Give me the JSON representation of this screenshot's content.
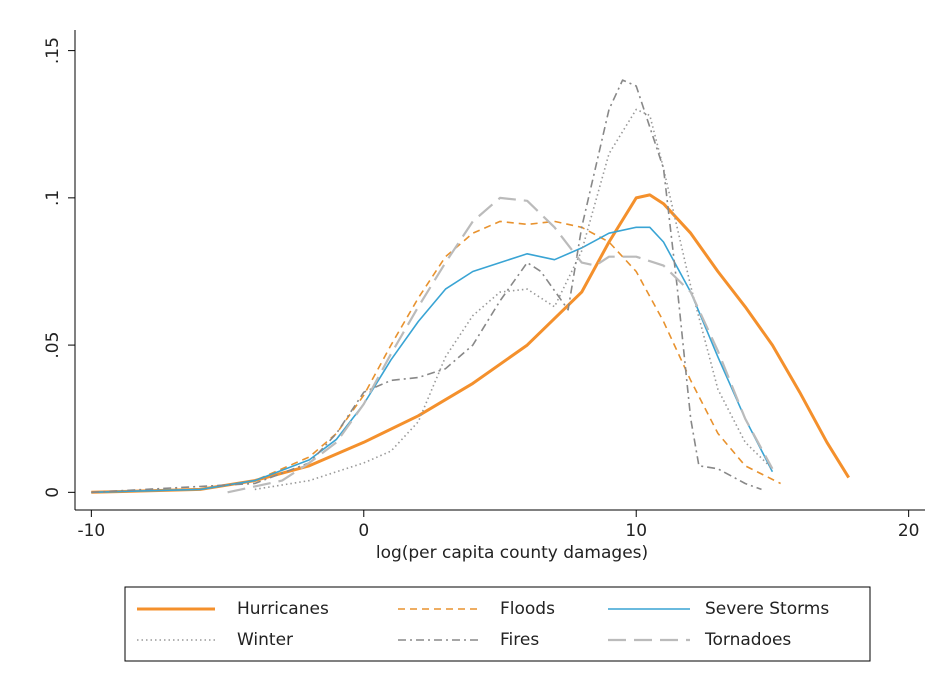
{
  "chart_data": {
    "type": "line",
    "xlabel": "log(per capita county damages)",
    "xlim": [
      -10.6,
      20.6
    ],
    "xticks": [
      -10,
      0,
      10,
      20
    ],
    "ylim": [
      -0.006,
      0.157
    ],
    "yticks": [
      0,
      {
        "value": 0.05,
        "label": ".05"
      },
      {
        "value": 0.1,
        "label": ".1"
      },
      {
        "value": 0.15,
        "label": ".15"
      }
    ],
    "series": [
      {
        "name": "Hurricanes",
        "color": "#f4902c",
        "style": "solid",
        "line_width": 3,
        "x": [
          -10,
          -6,
          -4,
          -2,
          0,
          2,
          4,
          6,
          8,
          9,
          10,
          10.5,
          11,
          12,
          13,
          14,
          15,
          16,
          17,
          17.8
        ],
        "values": [
          0,
          0.001,
          0.004,
          0.009,
          0.017,
          0.026,
          0.037,
          0.05,
          0.068,
          0.085,
          0.1,
          0.101,
          0.098,
          0.088,
          0.075,
          0.063,
          0.05,
          0.034,
          0.017,
          0.005
        ]
      },
      {
        "name": "Floods",
        "color": "#e8922e",
        "style": "dashed",
        "line_width": 1.6,
        "x": [
          -10,
          -6,
          -4,
          -2,
          -1,
          0,
          1,
          2,
          3,
          4,
          5,
          6,
          7,
          8,
          9,
          10,
          11,
          12,
          13,
          14,
          15.3
        ],
        "values": [
          0,
          0.001,
          0.004,
          0.012,
          0.02,
          0.033,
          0.05,
          0.066,
          0.08,
          0.088,
          0.092,
          0.091,
          0.092,
          0.09,
          0.085,
          0.075,
          0.058,
          0.038,
          0.02,
          0.009,
          0.003
        ]
      },
      {
        "name": "Severe Storms",
        "color": "#39a4d4",
        "style": "solid",
        "line_width": 1.6,
        "x": [
          -10,
          -6,
          -4,
          -2,
          -1,
          0,
          1,
          2,
          3,
          4,
          5,
          6,
          7,
          8,
          9,
          10,
          10.5,
          11,
          12,
          13,
          14,
          15
        ],
        "values": [
          0,
          0.001,
          0.004,
          0.011,
          0.018,
          0.03,
          0.045,
          0.058,
          0.069,
          0.075,
          0.078,
          0.081,
          0.079,
          0.083,
          0.088,
          0.09,
          0.09,
          0.085,
          0.068,
          0.046,
          0.025,
          0.007
        ]
      },
      {
        "name": "Winter",
        "color": "#999999",
        "style": "dotted",
        "line_width": 1.6,
        "x": [
          -4,
          -2,
          0,
          1,
          2,
          3,
          4,
          5,
          6,
          7,
          8,
          9,
          10,
          10.5,
          11,
          12,
          13,
          14,
          15
        ],
        "values": [
          0.001,
          0.004,
          0.01,
          0.014,
          0.024,
          0.046,
          0.06,
          0.068,
          0.069,
          0.063,
          0.082,
          0.115,
          0.13,
          0.128,
          0.11,
          0.07,
          0.035,
          0.017,
          0.008
        ]
      },
      {
        "name": "Fires",
        "color": "#888888",
        "style": "dashdot",
        "line_width": 1.6,
        "x": [
          -10,
          -4,
          -2,
          -1,
          0,
          1,
          2,
          3,
          4,
          5,
          6,
          6.5,
          7.5,
          8,
          9,
          9.5,
          10,
          11,
          11.5,
          12,
          12.3,
          13,
          14,
          14.6
        ],
        "values": [
          0,
          0.003,
          0.01,
          0.02,
          0.034,
          0.038,
          0.039,
          0.042,
          0.05,
          0.065,
          0.078,
          0.075,
          0.062,
          0.09,
          0.13,
          0.14,
          0.138,
          0.11,
          0.07,
          0.025,
          0.009,
          0.008,
          0.003,
          0.001
        ]
      },
      {
        "name": "Tornadoes",
        "color": "#bbbbbb",
        "style": "longdash",
        "line_width": 2.2,
        "x": [
          -5,
          -3,
          -2,
          -1,
          0,
          1,
          2,
          3,
          4,
          5,
          6,
          7,
          8,
          8.5,
          9,
          10,
          11,
          12,
          13,
          14,
          15
        ],
        "values": [
          0,
          0.004,
          0.01,
          0.017,
          0.03,
          0.047,
          0.063,
          0.078,
          0.092,
          0.1,
          0.099,
          0.09,
          0.078,
          0.077,
          0.08,
          0.08,
          0.077,
          0.068,
          0.048,
          0.025,
          0.008
        ]
      }
    ]
  }
}
